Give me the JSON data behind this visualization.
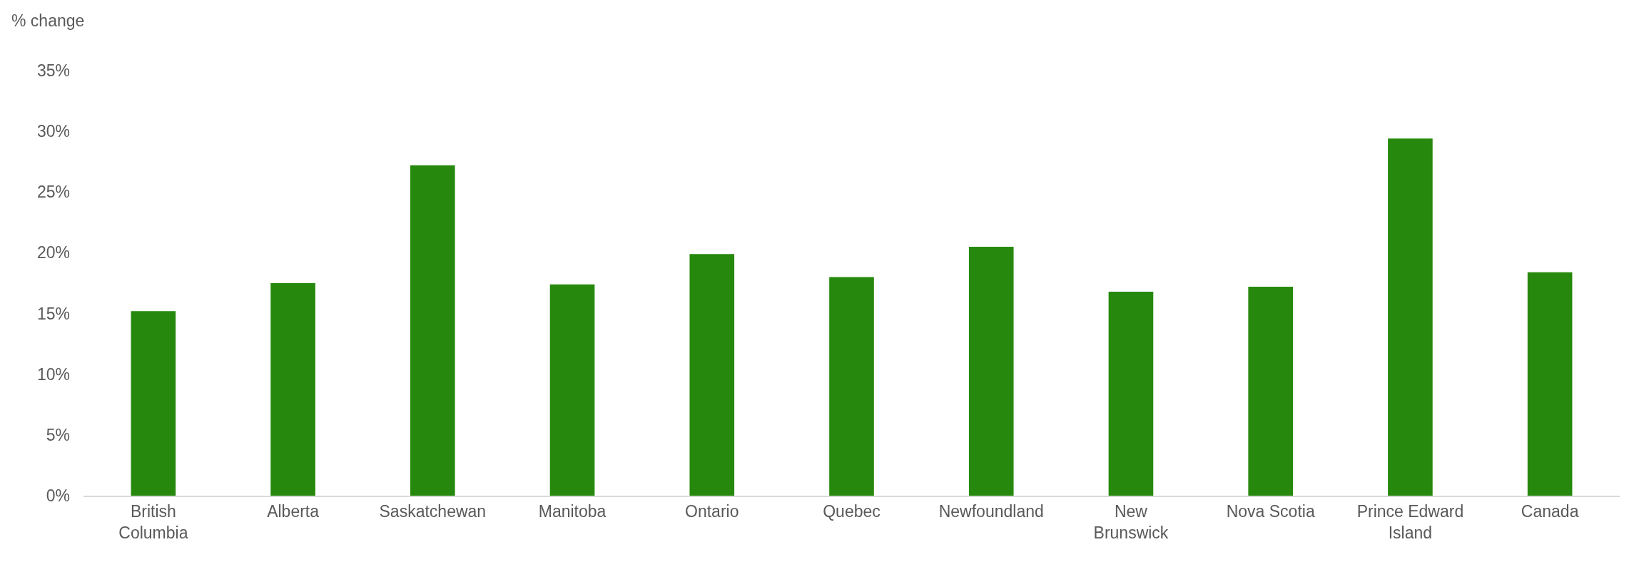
{
  "chart_data": {
    "type": "bar",
    "ylabel": "% change",
    "categories": [
      "British Columbia",
      "Alberta",
      "Saskatchewan",
      "Manitoba",
      "Ontario",
      "Quebec",
      "Newfoundland",
      "New Brunswick",
      "Nova Scotia",
      "Prince Edward Island",
      "Canada"
    ],
    "values": [
      15.2,
      17.5,
      27.2,
      17.4,
      19.9,
      18.0,
      20.5,
      16.8,
      17.2,
      29.4,
      18.4
    ],
    "color": "#26890d",
    "ylim": [
      0,
      35
    ],
    "yticks": [
      {
        "value": 0,
        "label": "0%"
      },
      {
        "value": 5,
        "label": "5%"
      },
      {
        "value": 10,
        "label": "10%"
      },
      {
        "value": 15,
        "label": "15%"
      },
      {
        "value": 20,
        "label": "20%"
      },
      {
        "value": 25,
        "label": "25%"
      },
      {
        "value": 30,
        "label": "30%"
      },
      {
        "value": 35,
        "label": "35%"
      }
    ],
    "grid": false
  }
}
